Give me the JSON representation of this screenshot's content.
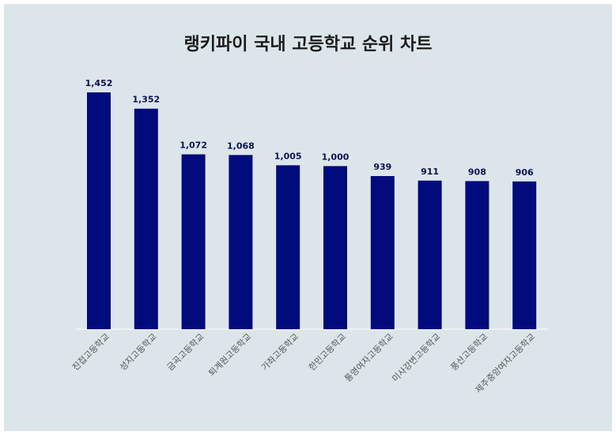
{
  "chart_data": {
    "type": "bar",
    "title": "랭키파이 국내 고등학교 순위 차트",
    "categories": [
      "진접고등학교",
      "성지고등학교",
      "금곡고등학교",
      "퇴계원고등학교",
      "가좌고등학교",
      "한민고등학교",
      "통영여자고등학교",
      "미사강변고등학교",
      "풍산고등학교",
      "제주중앙여자고등학교"
    ],
    "values": [
      1452,
      1352,
      1072,
      1068,
      1005,
      1000,
      939,
      911,
      908,
      906
    ],
    "value_labels": [
      "1,452",
      "1,352",
      "1,072",
      "1,068",
      "1,005",
      "1,000",
      "939",
      "911",
      "908",
      "906"
    ],
    "ylim": [
      0,
      1452
    ],
    "grid": false,
    "legend": "none",
    "colors": {
      "bar": "#020b7c",
      "background": "#dce6ea",
      "label": "#0a1250",
      "tick": "#555555"
    }
  }
}
